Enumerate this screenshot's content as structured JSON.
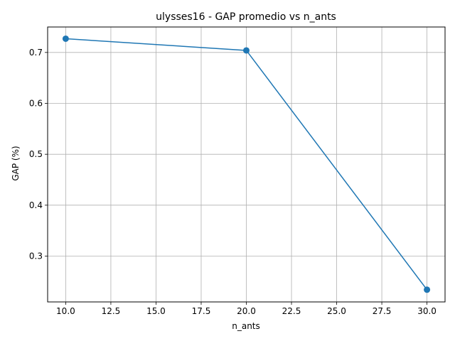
{
  "chart_data": {
    "type": "line",
    "title": "ulysses16 - GAP promedio vs n_ants",
    "xlabel": "n_ants",
    "ylabel": "GAP (%)",
    "xlim": [
      9.0,
      31.0
    ],
    "ylim": [
      0.21,
      0.75
    ],
    "xticks": [
      10.0,
      12.5,
      15.0,
      17.5,
      20.0,
      22.5,
      25.0,
      27.5,
      30.0
    ],
    "xtick_labels": [
      "10.0",
      "12.5",
      "15.0",
      "17.5",
      "20.0",
      "22.5",
      "25.0",
      "27.5",
      "30.0"
    ],
    "yticks": [
      0.3,
      0.4,
      0.5,
      0.6,
      0.7
    ],
    "ytick_labels": [
      "0.3",
      "0.4",
      "0.5",
      "0.6",
      "0.7"
    ],
    "grid": true,
    "series": [
      {
        "x": [
          10,
          20,
          30
        ],
        "y": [
          0.727,
          0.704,
          0.234
        ],
        "color": "#1f77b4",
        "marker": "circle"
      }
    ]
  }
}
